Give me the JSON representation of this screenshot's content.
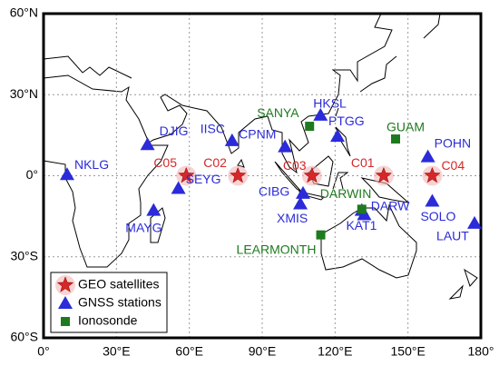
{
  "map": {
    "xlim": [
      0,
      180
    ],
    "ylim": [
      -60,
      60
    ],
    "xticks": [
      {
        "value": 0,
        "label": "0°"
      },
      {
        "value": 30,
        "label": "30°E"
      },
      {
        "value": 60,
        "label": "60°E"
      },
      {
        "value": 90,
        "label": "90°E"
      },
      {
        "value": 120,
        "label": "120°E"
      },
      {
        "value": 150,
        "label": "150°E"
      },
      {
        "value": 180,
        "label": "180°"
      }
    ],
    "yticks": [
      {
        "value": 60,
        "label": "60°N"
      },
      {
        "value": 30,
        "label": "30°N"
      },
      {
        "value": 0,
        "label": "0°"
      },
      {
        "value": -30,
        "label": "30°S"
      },
      {
        "value": -60,
        "label": "60°S"
      }
    ],
    "groups": [
      {
        "name": "GEO satellites",
        "marker": "star",
        "color": "#d62728",
        "points": [
          {
            "label": "C05",
            "lon": 58.75,
            "lat": 0
          },
          {
            "label": "C02",
            "lon": 80,
            "lat": 0
          },
          {
            "label": "C03",
            "lon": 110.5,
            "lat": 0
          },
          {
            "label": "C01",
            "lon": 140,
            "lat": 0
          },
          {
            "label": "C04",
            "lon": 160,
            "lat": 0
          }
        ]
      },
      {
        "name": "GNSS stations",
        "marker": "triangle",
        "color": "#2b2bd9",
        "points": [
          {
            "label": "NKLG",
            "lon": 9.7,
            "lat": 0.4
          },
          {
            "label": "DJIG",
            "lon": 42.8,
            "lat": 11.5
          },
          {
            "label": "SEYG",
            "lon": 55.5,
            "lat": -4.7
          },
          {
            "label": "MAYG",
            "lon": 45.3,
            "lat": -12.8
          },
          {
            "label": "IISC",
            "lon": 77.6,
            "lat": 13
          },
          {
            "label": "CPNM",
            "lon": 99.4,
            "lat": 10.7
          },
          {
            "label": "HKSL",
            "lon": 114,
            "lat": 22.4
          },
          {
            "label": "PTGG",
            "lon": 121,
            "lat": 14.6
          },
          {
            "label": "CIBG",
            "lon": 106.8,
            "lat": -6.5
          },
          {
            "label": "XMIS",
            "lon": 105.7,
            "lat": -10.4
          },
          {
            "label": "DARW",
            "lon": 131,
            "lat": -12.8
          },
          {
            "label": "KAT1",
            "lon": 132,
            "lat": -14.4
          },
          {
            "label": "SOLO",
            "lon": 160,
            "lat": -9.4
          },
          {
            "label": "LAUT",
            "lon": 177.4,
            "lat": -17.6
          },
          {
            "label": "POHN",
            "lon": 158.2,
            "lat": 7
          }
        ]
      },
      {
        "name": "Ionosonde",
        "marker": "square",
        "color": "#1e7a1e",
        "points": [
          {
            "label": "SANYA",
            "lon": 109.5,
            "lat": 18.3
          },
          {
            "label": "GUAM",
            "lon": 144.9,
            "lat": 13.6
          },
          {
            "label": "DARWIN",
            "lon": 131,
            "lat": -12.4
          },
          {
            "label": "LEARMONTH",
            "lon": 114.1,
            "lat": -21.9
          }
        ]
      }
    ]
  }
}
